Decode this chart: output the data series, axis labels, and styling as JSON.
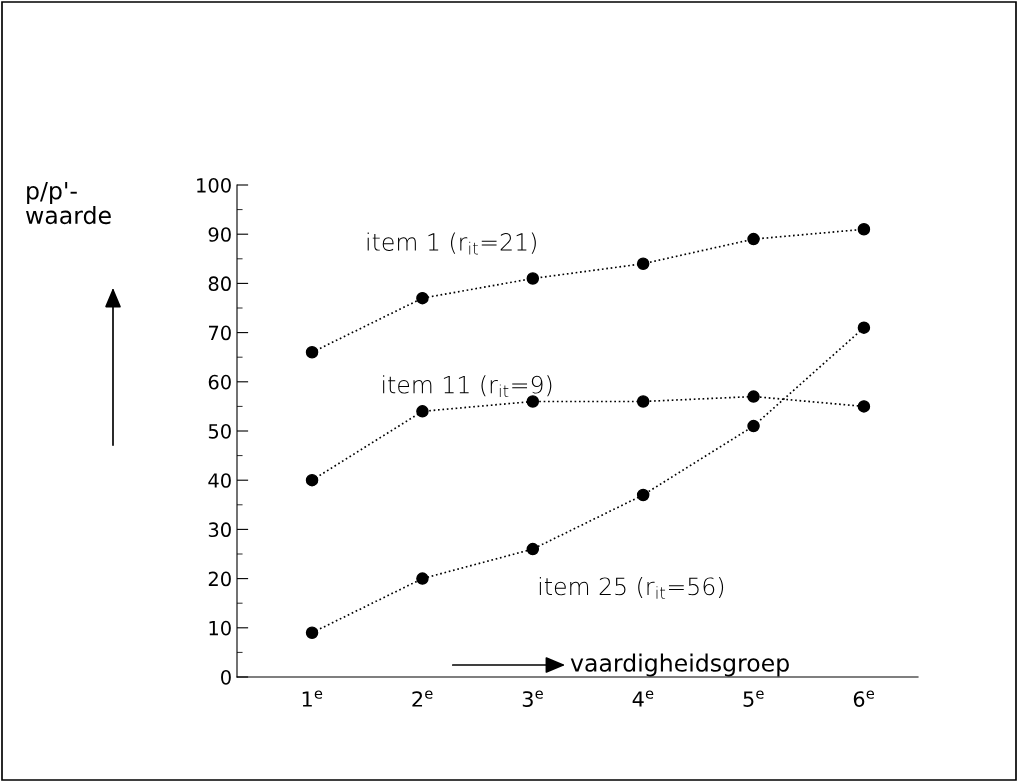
{
  "chart_data": {
    "type": "line",
    "xlabel": "vaardigheidsgroep",
    "ylabel": "p/p'-\nwaarde",
    "categories": [
      "1$^{e}$",
      "2$^{e}$",
      "3$^{e}$",
      "4$^{e}$",
      "5$^{e}$",
      "6$^{e}$"
    ],
    "series": [
      {
        "name": "item 1 (r$_{it}$=21)",
        "color": "#000000",
        "values": [
          66,
          77,
          81,
          84,
          89,
          91
        ]
      },
      {
        "name": "item 11 (r$_{it}$=9)",
        "color": "#000000",
        "values": [
          40,
          54,
          56,
          56,
          57,
          55
        ]
      },
      {
        "name": "item 25 (r$_{it}$=56)",
        "color": "#000000",
        "values": [
          9,
          20,
          26,
          37,
          51,
          71
        ]
      }
    ],
    "ylim": [
      0,
      100
    ],
    "yticks": [
      0,
      10,
      20,
      30,
      40,
      50,
      60,
      70,
      80,
      90,
      100
    ],
    "grid": false,
    "legend": false,
    "marker": "circle",
    "line_style": "dotted"
  }
}
